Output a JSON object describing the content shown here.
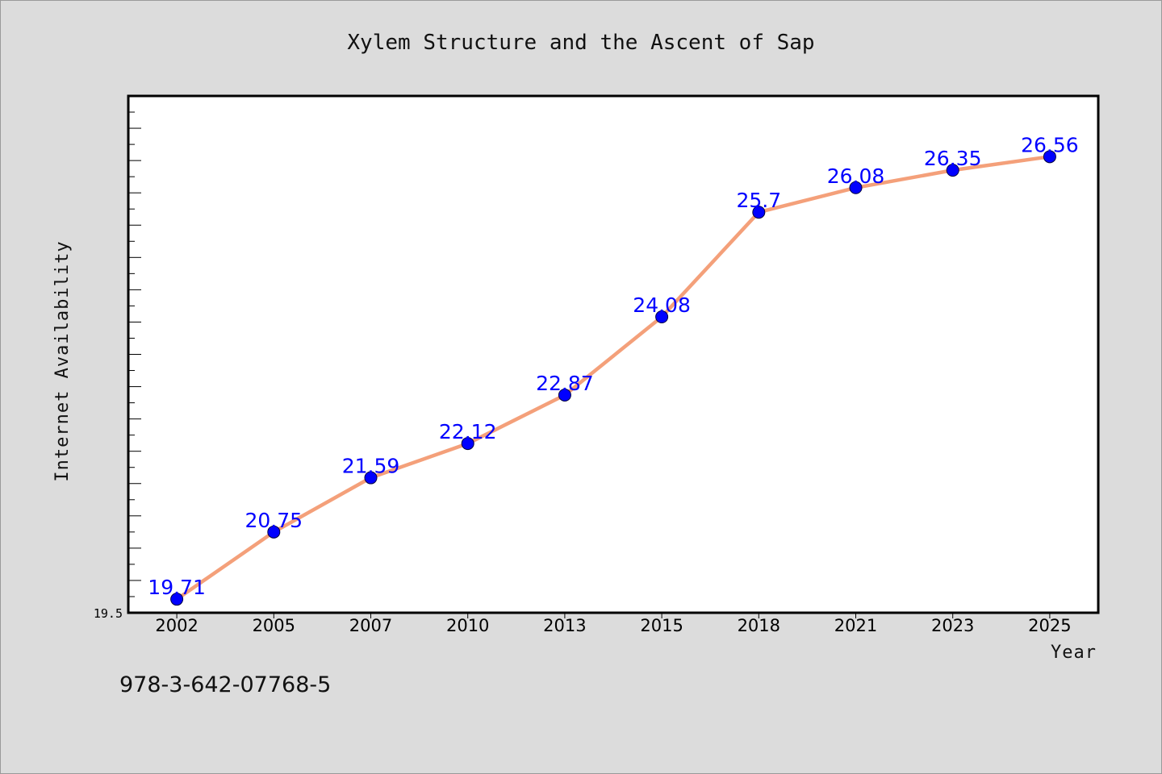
{
  "chart_data": {
    "type": "line",
    "title": "Xylem Structure and the Ascent of Sap",
    "xlabel": "Year",
    "ylabel": "Internet Availability",
    "categories": [
      "2002",
      "2005",
      "2007",
      "2010",
      "2013",
      "2015",
      "2018",
      "2021",
      "2023",
      "2025"
    ],
    "series": [
      {
        "values": [
          19.71,
          20.75,
          21.59,
          22.12,
          22.87,
          24.08,
          25.7,
          26.08,
          26.35,
          26.56
        ]
      }
    ],
    "data_labels": [
      "19.71",
      "20.75",
      "21.59",
      "22.12",
      "22.87",
      "24.08",
      "25.7",
      "26.08",
      "26.35",
      "26.56"
    ],
    "ylim": [
      19.5,
      27.5
    ],
    "y_tick_labels": [
      "19.5"
    ],
    "grid": false,
    "line_color": "#f4a07a",
    "marker_color": "#0000ff",
    "label_color": "#0000ff"
  },
  "footer": {
    "isbn": "978-3-642-07768-5"
  }
}
